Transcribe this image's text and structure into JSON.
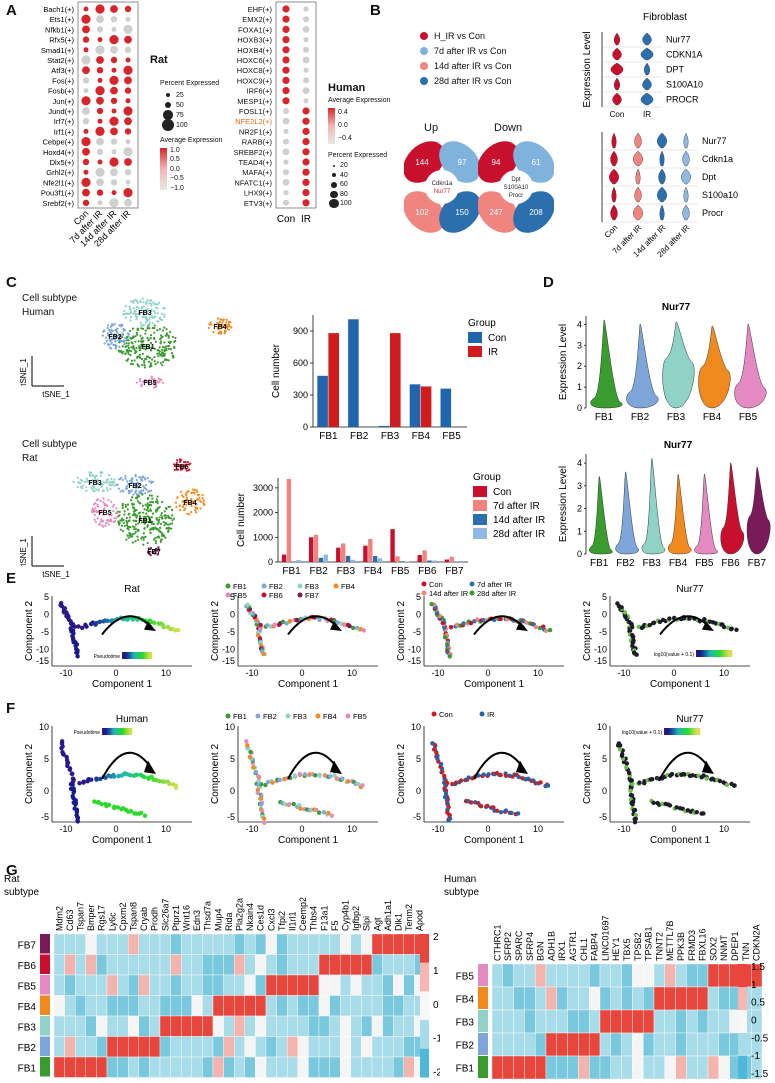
{
  "panel_labels": [
    "A",
    "B",
    "C",
    "D",
    "E",
    "F",
    "G"
  ],
  "colors": {
    "dot_red": "#d7262b",
    "dot_grey": "#cfcfcf",
    "fb1": "#3a9b2e",
    "fb2": "#7ea6d8",
    "fb3": "#8fd2c6",
    "fb4": "#f08a1f",
    "fb5": "#e48ac3",
    "fb6": "#c8102e",
    "fb7": "#7a1a59",
    "con_blue": "#2166ac",
    "ir_red": "#d01c1c",
    "rat_con": "#c8102e",
    "rat_7d": "#f0857f",
    "rat_14d": "#2c6fae",
    "rat_28d": "#8fb9e0",
    "heat_high": "#e8453c",
    "heat_mid": "#f7f7f7",
    "heat_low": "#4fb8d8"
  },
  "panelA": {
    "rat": {
      "title": "Rat",
      "genes": [
        "Bach1(+)",
        "Ets1(+)",
        "Nfkb1(+)",
        "Rfx5(+)",
        "Smad1(+)",
        "Stat2(+)",
        "Atf3(+)",
        "Fos(+)",
        "Fosb(+)",
        "Jun(+)",
        "Jund(+)",
        "Irf7(+)",
        "Irf1(+)",
        "Cebpe(+)",
        "Hoxd4(+)",
        "Dlx5(+)",
        "Grhl2(+)",
        "Nfe2l1(+)",
        "Pou3f1(+)",
        "Srebf2(+)"
      ],
      "groups": [
        "Con",
        "7d after IR",
        "14d after IR",
        "28d after IR"
      ],
      "pct_title": "Percent Expressed",
      "pct_values": [
        "25",
        "50",
        "75",
        "100"
      ],
      "avg_title": "Average Expression",
      "avg_ticks": [
        "1.0",
        "0.5",
        "0.0",
        "−0.5",
        "−1.0"
      ]
    },
    "human": {
      "title": "Human",
      "genes": [
        "EHF(+)",
        "EMX2(+)",
        "FOXA1(+)",
        "HOXB3(+)",
        "HOXB4(+)",
        "HOXC6(+)",
        "HOXC8(+)",
        "HOXC9(+)",
        "IRF6(+)",
        "MESP1(+)",
        "FOSL1(+)",
        "NFE2L2(+)",
        "NR2F1(+)",
        "RARB(+)",
        "SREBF2(+)",
        "TEAD4(+)",
        "MAFA(+)",
        "NFATC1(+)",
        "LHX9(+)",
        "ETV3(+)"
      ],
      "highlight_gene": "NFE2L2(+)",
      "groups": [
        "Con",
        "IR"
      ],
      "avg_title": "Average Expression",
      "avg_ticks": [
        "0.4",
        "0.0",
        "−0.4"
      ],
      "pct_title": "Percent Expressed",
      "pct_values": [
        "20",
        "40",
        "60",
        "80",
        "100"
      ]
    }
  },
  "panelB": {
    "legend": [
      "H_IR vs Con",
      "7d after IR vs Con",
      "14d after IR vs Con",
      "28d after IR vs Con"
    ],
    "up": {
      "title": "Up",
      "counts": [
        "144",
        "97",
        "102",
        "150"
      ],
      "center": [
        "Cdkn1a",
        "Nur77"
      ]
    },
    "down": {
      "title": "Down",
      "counts": [
        "94",
        "61",
        "247",
        "208"
      ],
      "center": [
        "Dpt",
        "S100A10",
        "Procr"
      ]
    },
    "violin_human": {
      "title": "Fibroblast",
      "ylabel": "Expression Level",
      "genes": [
        "Nur77",
        "CDKN1A",
        "DPT",
        "S100A10",
        "PROCR"
      ],
      "groups": [
        "Con",
        "IR"
      ]
    },
    "violin_rat": {
      "genes": [
        "Nur77",
        "Cdkn1a",
        "Dpt",
        "S100a10",
        "Procr"
      ],
      "groups": [
        "Con",
        "7d after IR",
        "14d after IR",
        "28d after IR"
      ]
    }
  },
  "panelC": {
    "human": {
      "tsne_title": [
        "Cell subtype",
        "Human"
      ],
      "tsne_x": "tSNE_1",
      "tsne_y": "tSNE_1",
      "cluster_labels": [
        "FB1",
        "FB2",
        "FB3",
        "FB4",
        "FB5"
      ]
    },
    "rat": {
      "tsne_title": [
        "Cell subtype",
        "Rat"
      ],
      "tsne_x": "tSNE_1",
      "tsne_y": "tSNE_1",
      "cluster_labels": [
        "FB1",
        "FB2",
        "FB3",
        "FB4",
        "FB5",
        "FB6",
        "FB7"
      ]
    }
  },
  "chart_data": [
    {
      "type": "bar",
      "id": "human_cells",
      "ylabel": "Cell number",
      "legend_title": "Group",
      "categories": [
        "FB1",
        "FB2",
        "FB3",
        "FB4",
        "FB5"
      ],
      "series": [
        {
          "name": "Con",
          "values": [
            480,
            1010,
            10,
            400,
            360
          ]
        },
        {
          "name": "IR",
          "values": [
            880,
            0,
            880,
            380,
            0
          ]
        }
      ],
      "ylim": [
        0,
        1050
      ],
      "yticks": [
        "0",
        "300",
        "600",
        "900"
      ]
    },
    {
      "type": "bar",
      "id": "rat_cells",
      "ylabel": "Cell number",
      "legend_title": "Group",
      "categories": [
        "FB1",
        "FB2",
        "FB3",
        "FB4",
        "FB5",
        "FB6",
        "FB7"
      ],
      "series": [
        {
          "name": "Con",
          "values": [
            300,
            1000,
            580,
            660,
            1330,
            280,
            100
          ]
        },
        {
          "name": "7d after IR",
          "values": [
            3360,
            1100,
            750,
            930,
            230,
            470,
            210
          ]
        },
        {
          "name": "14d after IR",
          "values": [
            20,
            170,
            250,
            240,
            30,
            60,
            20
          ]
        },
        {
          "name": "28d after IR",
          "values": [
            80,
            300,
            90,
            150,
            20,
            60,
            40
          ]
        }
      ],
      "ylim": [
        0,
        3400
      ],
      "yticks": [
        "0",
        "1000",
        "2000",
        "3000"
      ]
    },
    {
      "type": "violin",
      "id": "human_nur77",
      "title": "Nur77",
      "ylabel": "Expression Level",
      "categories": [
        "FB1",
        "FB2",
        "FB3",
        "FB4",
        "FB5"
      ],
      "max": [
        4.2,
        4.0,
        4.1,
        3.9,
        4.0
      ],
      "mode": [
        0.3,
        0.6,
        2.2,
        1.8,
        1.0
      ],
      "ylim": [
        0,
        4.4
      ],
      "yticks": [
        "0",
        "1",
        "2",
        "3",
        "4"
      ]
    },
    {
      "type": "violin",
      "id": "rat_nur77",
      "title": "Nur77",
      "ylabel": "Expression Level",
      "categories": [
        "FB1",
        "FB2",
        "FB3",
        "FB4",
        "FB5",
        "FB6",
        "FB7"
      ],
      "max": [
        3.4,
        3.6,
        4.2,
        3.5,
        3.5,
        4.0,
        3.8
      ],
      "mode": [
        0.2,
        0.3,
        0.3,
        0.3,
        0.2,
        1.0,
        1.5
      ],
      "ylim": [
        0,
        4.4
      ],
      "yticks": [
        "0",
        "1",
        "2",
        "3",
        "4"
      ]
    }
  ],
  "panelD": {
    "x_labels_human": [
      "FB1",
      "FB2",
      "FB3",
      "FB4",
      "FB5"
    ],
    "x_labels_rat": [
      "FB1",
      "FB2",
      "FB3",
      "FB4",
      "FB5",
      "FB6",
      "FB7"
    ]
  },
  "panelE": {
    "titles": [
      "Rat",
      "",
      "",
      "Nur77"
    ],
    "xlabel": "Component 1",
    "ylabel": "Component 2",
    "xticks": [
      "-10",
      "0",
      "10"
    ],
    "yticks": [
      "5",
      "0",
      "-5",
      "-10",
      "-15"
    ],
    "legend_fb": [
      "FB1",
      "FB2",
      "FB3",
      "FB4",
      "FB5",
      "FB6",
      "FB7"
    ],
    "legend_group": [
      "Con",
      "7d after IR",
      "14d after IR",
      "28d after IR"
    ],
    "pseudotime_label": "Pseudotime",
    "log_label": "log10(value + 0.1)"
  },
  "panelF": {
    "titles": [
      "Human",
      "",
      "",
      "Nur77"
    ],
    "xlabel": "Component 1",
    "ylabel": "Component 2",
    "xticks": [
      "-10",
      "0",
      "10"
    ],
    "yticks": [
      "10",
      "5",
      "0",
      "-5"
    ],
    "legend_fb": [
      "FB1",
      "FB2",
      "FB3",
      "FB4",
      "FB5"
    ],
    "legend_group": [
      "Con",
      "IR"
    ],
    "pseudotime_label": "Pseudotime",
    "log_label": "log10(value + 0.1)"
  },
  "panelG": {
    "rat": {
      "title": [
        "Rat",
        "subtype"
      ],
      "rows": [
        "FB7",
        "FB6",
        "FB5",
        "FB4",
        "FB3",
        "FB2",
        "FB1"
      ],
      "genes": [
        "Mdm2",
        "Cd63",
        "Tspan7",
        "Bmper",
        "Rgs17",
        "Ly6c",
        "Cpxm2",
        "Tspan8",
        "Cryab",
        "Prodh",
        "Slc26a7",
        "Ptprz1",
        "Wnt16",
        "Edn3",
        "Thsd7a",
        "Mup4",
        "Rida",
        "Pla2g2a",
        "Nkain4",
        "Ces1d",
        "Cxcl3",
        "Tfpi2",
        "Il1rl1",
        "Ceemp2",
        "Thbs4",
        "F13a1",
        "F5",
        "Cyp4b1",
        "Igfbp2",
        "Slpi",
        "Agt",
        "Adh1a1",
        "Dlk1",
        "Tenm2",
        "Apod"
      ],
      "scale": [
        "2",
        "1",
        "0",
        "-1",
        "-2"
      ]
    },
    "human": {
      "title": [
        "Human",
        "subtype"
      ],
      "rows": [
        "FB5",
        "FB4",
        "FB3",
        "FB2",
        "FB1"
      ],
      "genes": [
        "CTHRC1",
        "SFRP2",
        "SPARC",
        "SFRP4",
        "BGN",
        "ADH1B",
        "IRX1",
        "AGTR1",
        "CHL1",
        "FABP4",
        "LINC01697",
        "HEY1",
        "TBX5",
        "TPSB2",
        "TPSAB1",
        "TNNT2",
        "METTL7B",
        "PPK3B",
        "FRMD3",
        "FBXL16",
        "SOX2",
        "NNMT",
        "DPEP1",
        "TNN",
        "CDKN2A"
      ],
      "scale": [
        "1.5",
        "1",
        "0.5",
        "0",
        "-0.5",
        "-1",
        "-1.5"
      ]
    }
  }
}
